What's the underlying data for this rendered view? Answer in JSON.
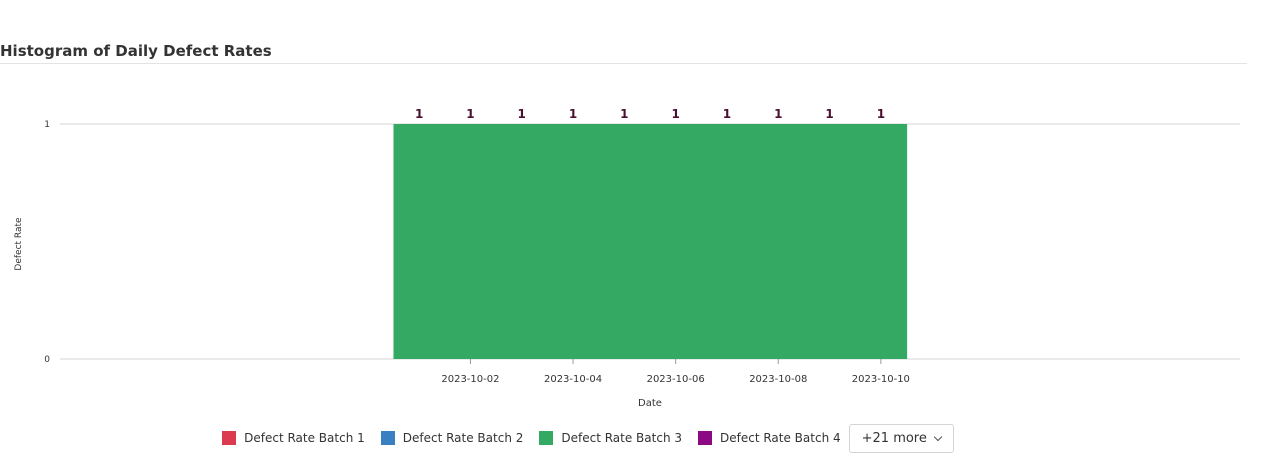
{
  "page": {
    "title": "Histogram of Daily Defect Rates"
  },
  "chart_data": {
    "type": "bar",
    "title": "Histogram of Daily Defect Rates",
    "xlabel": "Date",
    "ylabel": "Defect Rate",
    "x_tick_labels": [
      "2023-10-02",
      "2023-10-04",
      "2023-10-06",
      "2023-10-08",
      "2023-10-10"
    ],
    "categories": [
      "2023-10-01",
      "2023-10-02",
      "2023-10-03",
      "2023-10-04",
      "2023-10-05",
      "2023-10-06",
      "2023-10-07",
      "2023-10-08",
      "2023-10-09",
      "2023-10-10"
    ],
    "x_range": [
      "2023-09-24",
      "2023-10-17"
    ],
    "ylim": [
      0,
      1
    ],
    "y_ticks": [
      0,
      1
    ],
    "grid": true,
    "series": [
      {
        "name": "Defect Rate Batch 3",
        "color": "#34a963",
        "values": [
          1,
          1,
          1,
          1,
          1,
          1,
          1,
          1,
          1,
          1
        ]
      }
    ],
    "data_labels": [
      "1",
      "1",
      "1",
      "1",
      "1",
      "1",
      "1",
      "1",
      "1",
      "1"
    ],
    "data_label_color": "#4b1030"
  },
  "legend": {
    "placement": "bottom",
    "items": [
      {
        "label": "Defect Rate Batch 1",
        "color": "#dc3b4f"
      },
      {
        "label": "Defect Rate Batch 2",
        "color": "#3a7fc1"
      },
      {
        "label": "Defect Rate Batch 3",
        "color": "#34a963"
      },
      {
        "label": "Defect Rate Batch 4",
        "color": "#8b0a83"
      }
    ],
    "more_label": "+21 more"
  }
}
